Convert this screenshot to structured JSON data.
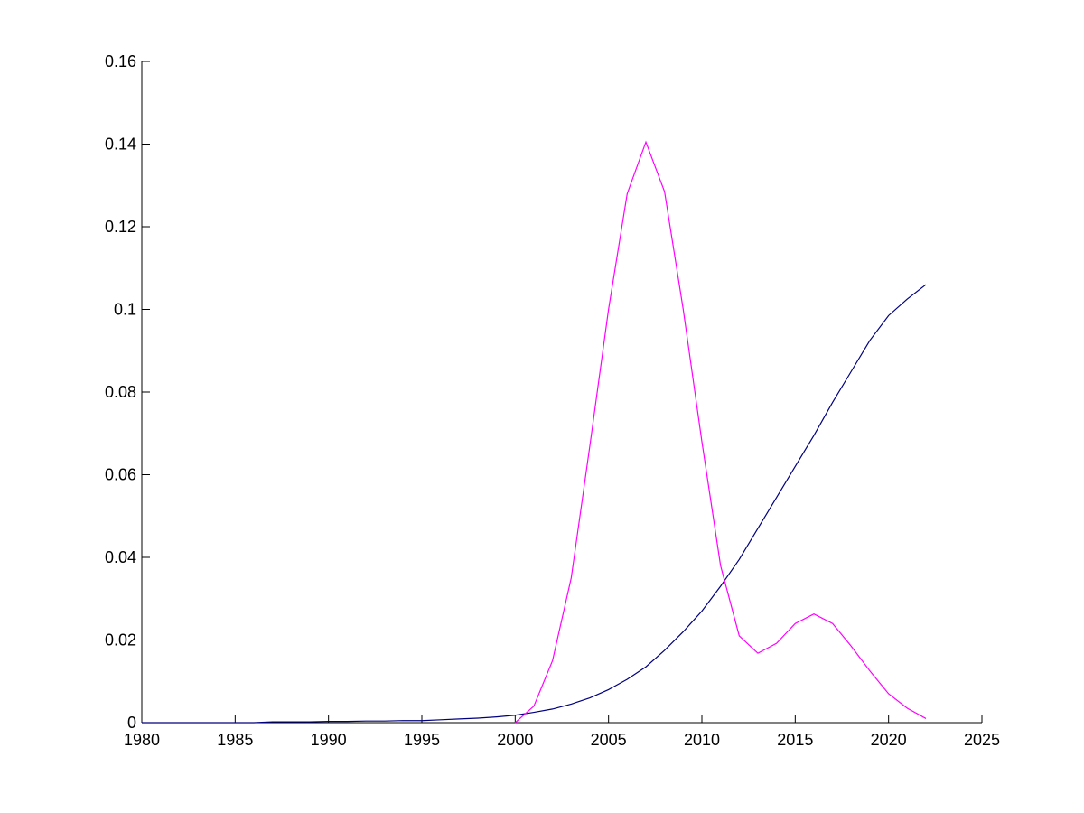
{
  "chart_data": {
    "type": "line",
    "xlim": [
      1980,
      2025
    ],
    "xticks": [
      1980,
      1985,
      1990,
      1995,
      2000,
      2005,
      2010,
      2015,
      2020,
      2025
    ],
    "ylim": [
      0,
      0.16
    ],
    "yticks": [
      0,
      0.02,
      0.04,
      0.06,
      0.08,
      0.1,
      0.12,
      0.14,
      0.16
    ],
    "grid": false,
    "series": [
      {
        "color": "#00007f",
        "x": [
          1980,
          1981,
          1982,
          1983,
          1984,
          1985,
          1986,
          1987,
          1988,
          1989,
          1990,
          1991,
          1992,
          1993,
          1994,
          1995,
          1996,
          1997,
          1998,
          1999,
          2000,
          2001,
          2002,
          2003,
          2004,
          2005,
          2006,
          2007,
          2008,
          2009,
          2010,
          2011,
          2012,
          2013,
          2014,
          2015,
          2016,
          2017,
          2018,
          2019,
          2020,
          2021,
          2022
        ],
        "values": [
          0,
          0,
          0,
          0,
          0,
          0,
          0,
          0.0002,
          0.0002,
          0.0002,
          0.0003,
          0.0003,
          0.0004,
          0.0004,
          0.0005,
          0.0005,
          0.0007,
          0.0009,
          0.0011,
          0.0014,
          0.0018,
          0.0025,
          0.0033,
          0.0045,
          0.006,
          0.008,
          0.0105,
          0.0135,
          0.0175,
          0.022,
          0.027,
          0.033,
          0.0395,
          0.047,
          0.0545,
          0.062,
          0.0695,
          0.0775,
          0.085,
          0.0925,
          0.0985,
          0.1025,
          0.106
        ]
      },
      {
        "color": "#ff00ff",
        "x": [
          2000,
          2001,
          2002,
          2003,
          2004,
          2005,
          2006,
          2007,
          2008,
          2009,
          2010,
          2011,
          2012,
          2013,
          2014,
          2015,
          2016,
          2017,
          2018,
          2019,
          2020,
          2021,
          2022
        ],
        "values": [
          0,
          0.004,
          0.015,
          0.035,
          0.067,
          0.1,
          0.128,
          0.1405,
          0.1285,
          0.1,
          0.068,
          0.038,
          0.021,
          0.0168,
          0.0192,
          0.024,
          0.0263,
          0.024,
          0.0185,
          0.0125,
          0.007,
          0.0035,
          0.001
        ]
      }
    ]
  }
}
